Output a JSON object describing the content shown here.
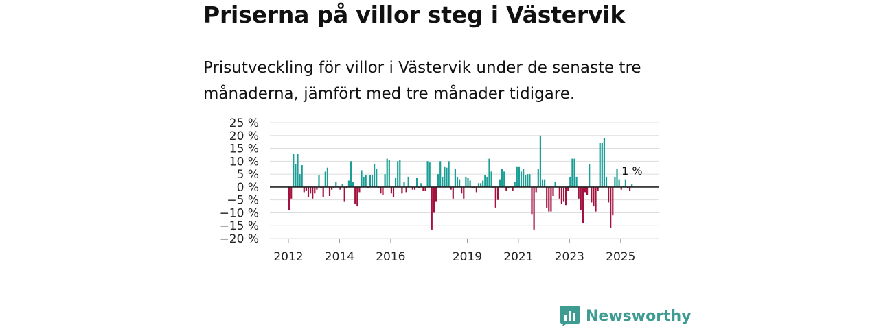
{
  "header": {
    "title": "Priserna på villor steg i Västervik",
    "subtitle": "Prisutveckling för villor i Västervik under de senaste tre månaderna, jämfört med tre månader tidigare."
  },
  "brand": {
    "name": "Newsworthy",
    "color": "#3e9b92"
  },
  "colors": {
    "positive": "#1a9e95",
    "negative": "#a3123f",
    "zero_line": "#222222",
    "grid": "#dddddd"
  },
  "chart_data": {
    "type": "bar",
    "title": "Priserna på villor steg i Västervik",
    "xlabel": "",
    "ylabel": "",
    "ylim": [
      -20,
      25
    ],
    "yticks": [
      25,
      20,
      15,
      10,
      5,
      0,
      -5,
      -10,
      -15,
      -20
    ],
    "ytick_labels": [
      "25 %",
      "20 %",
      "15 %",
      "10 %",
      "5 %",
      "0 %",
      "−5 %",
      "−10 %",
      "−15 %",
      "−20 %"
    ],
    "xticks": [
      2012,
      2014,
      2016,
      2019,
      2021,
      2023,
      2025
    ],
    "xtick_labels": [
      "2012",
      "2014",
      "2016",
      "2019",
      "2021",
      "2023",
      "2025"
    ],
    "x_start": 2012.0,
    "x_step": 0.0833,
    "annotation": {
      "text": "1 %",
      "value": 1
    },
    "series": [
      {
        "name": "Prisutveckling",
        "values": [
          -9,
          -4.5,
          13,
          9,
          13,
          5,
          8.5,
          -2,
          -1.5,
          -4,
          -2.5,
          -4.5,
          -2.5,
          -1,
          4.5,
          -0.5,
          -4,
          6,
          7.5,
          -3.5,
          -1,
          -0.5,
          2,
          0.5,
          -1,
          1,
          -5.5,
          -0.5,
          2.5,
          10,
          2,
          -6.5,
          -7.5,
          -2,
          6.5,
          4,
          4.5,
          -0.5,
          4.5,
          4.5,
          9,
          7,
          -0.5,
          -2.5,
          -3,
          5,
          11,
          10.5,
          -2.5,
          -4,
          3.5,
          10,
          10.5,
          -2.5,
          2,
          -2,
          4,
          0.5,
          -1,
          -1,
          3.5,
          -0.5,
          1.5,
          -1.5,
          -1.5,
          10,
          9.5,
          -16.5,
          -10,
          -5.5,
          5,
          10,
          4,
          8,
          7.5,
          10,
          -1,
          -4.5,
          7,
          4,
          3,
          -2.5,
          -4.5,
          4,
          3.5,
          2.5,
          -0.5,
          -0.5,
          -2,
          1.5,
          1.5,
          2.5,
          4.5,
          4,
          11,
          6,
          -0.5,
          -8,
          -5,
          3,
          7,
          6,
          -1.5,
          -0.5,
          0.5,
          -1.5,
          2,
          8,
          8,
          6,
          7,
          4.5,
          5,
          5,
          -10.5,
          -16.5,
          -2,
          7,
          20,
          3,
          3,
          -8,
          -9.5,
          -9.5,
          -3.5,
          2,
          0.5,
          -4.5,
          -6.5,
          -5.5,
          -7,
          -1.5,
          4,
          11,
          11,
          4,
          -4.5,
          -9,
          -14,
          -2,
          -3,
          9,
          -6,
          -7.5,
          -9.5,
          -1.5,
          17,
          17,
          19,
          4,
          -6,
          -16,
          -11,
          4,
          7,
          3,
          -1,
          0.5,
          3,
          -0.5,
          -1.5,
          1
        ]
      }
    ]
  }
}
